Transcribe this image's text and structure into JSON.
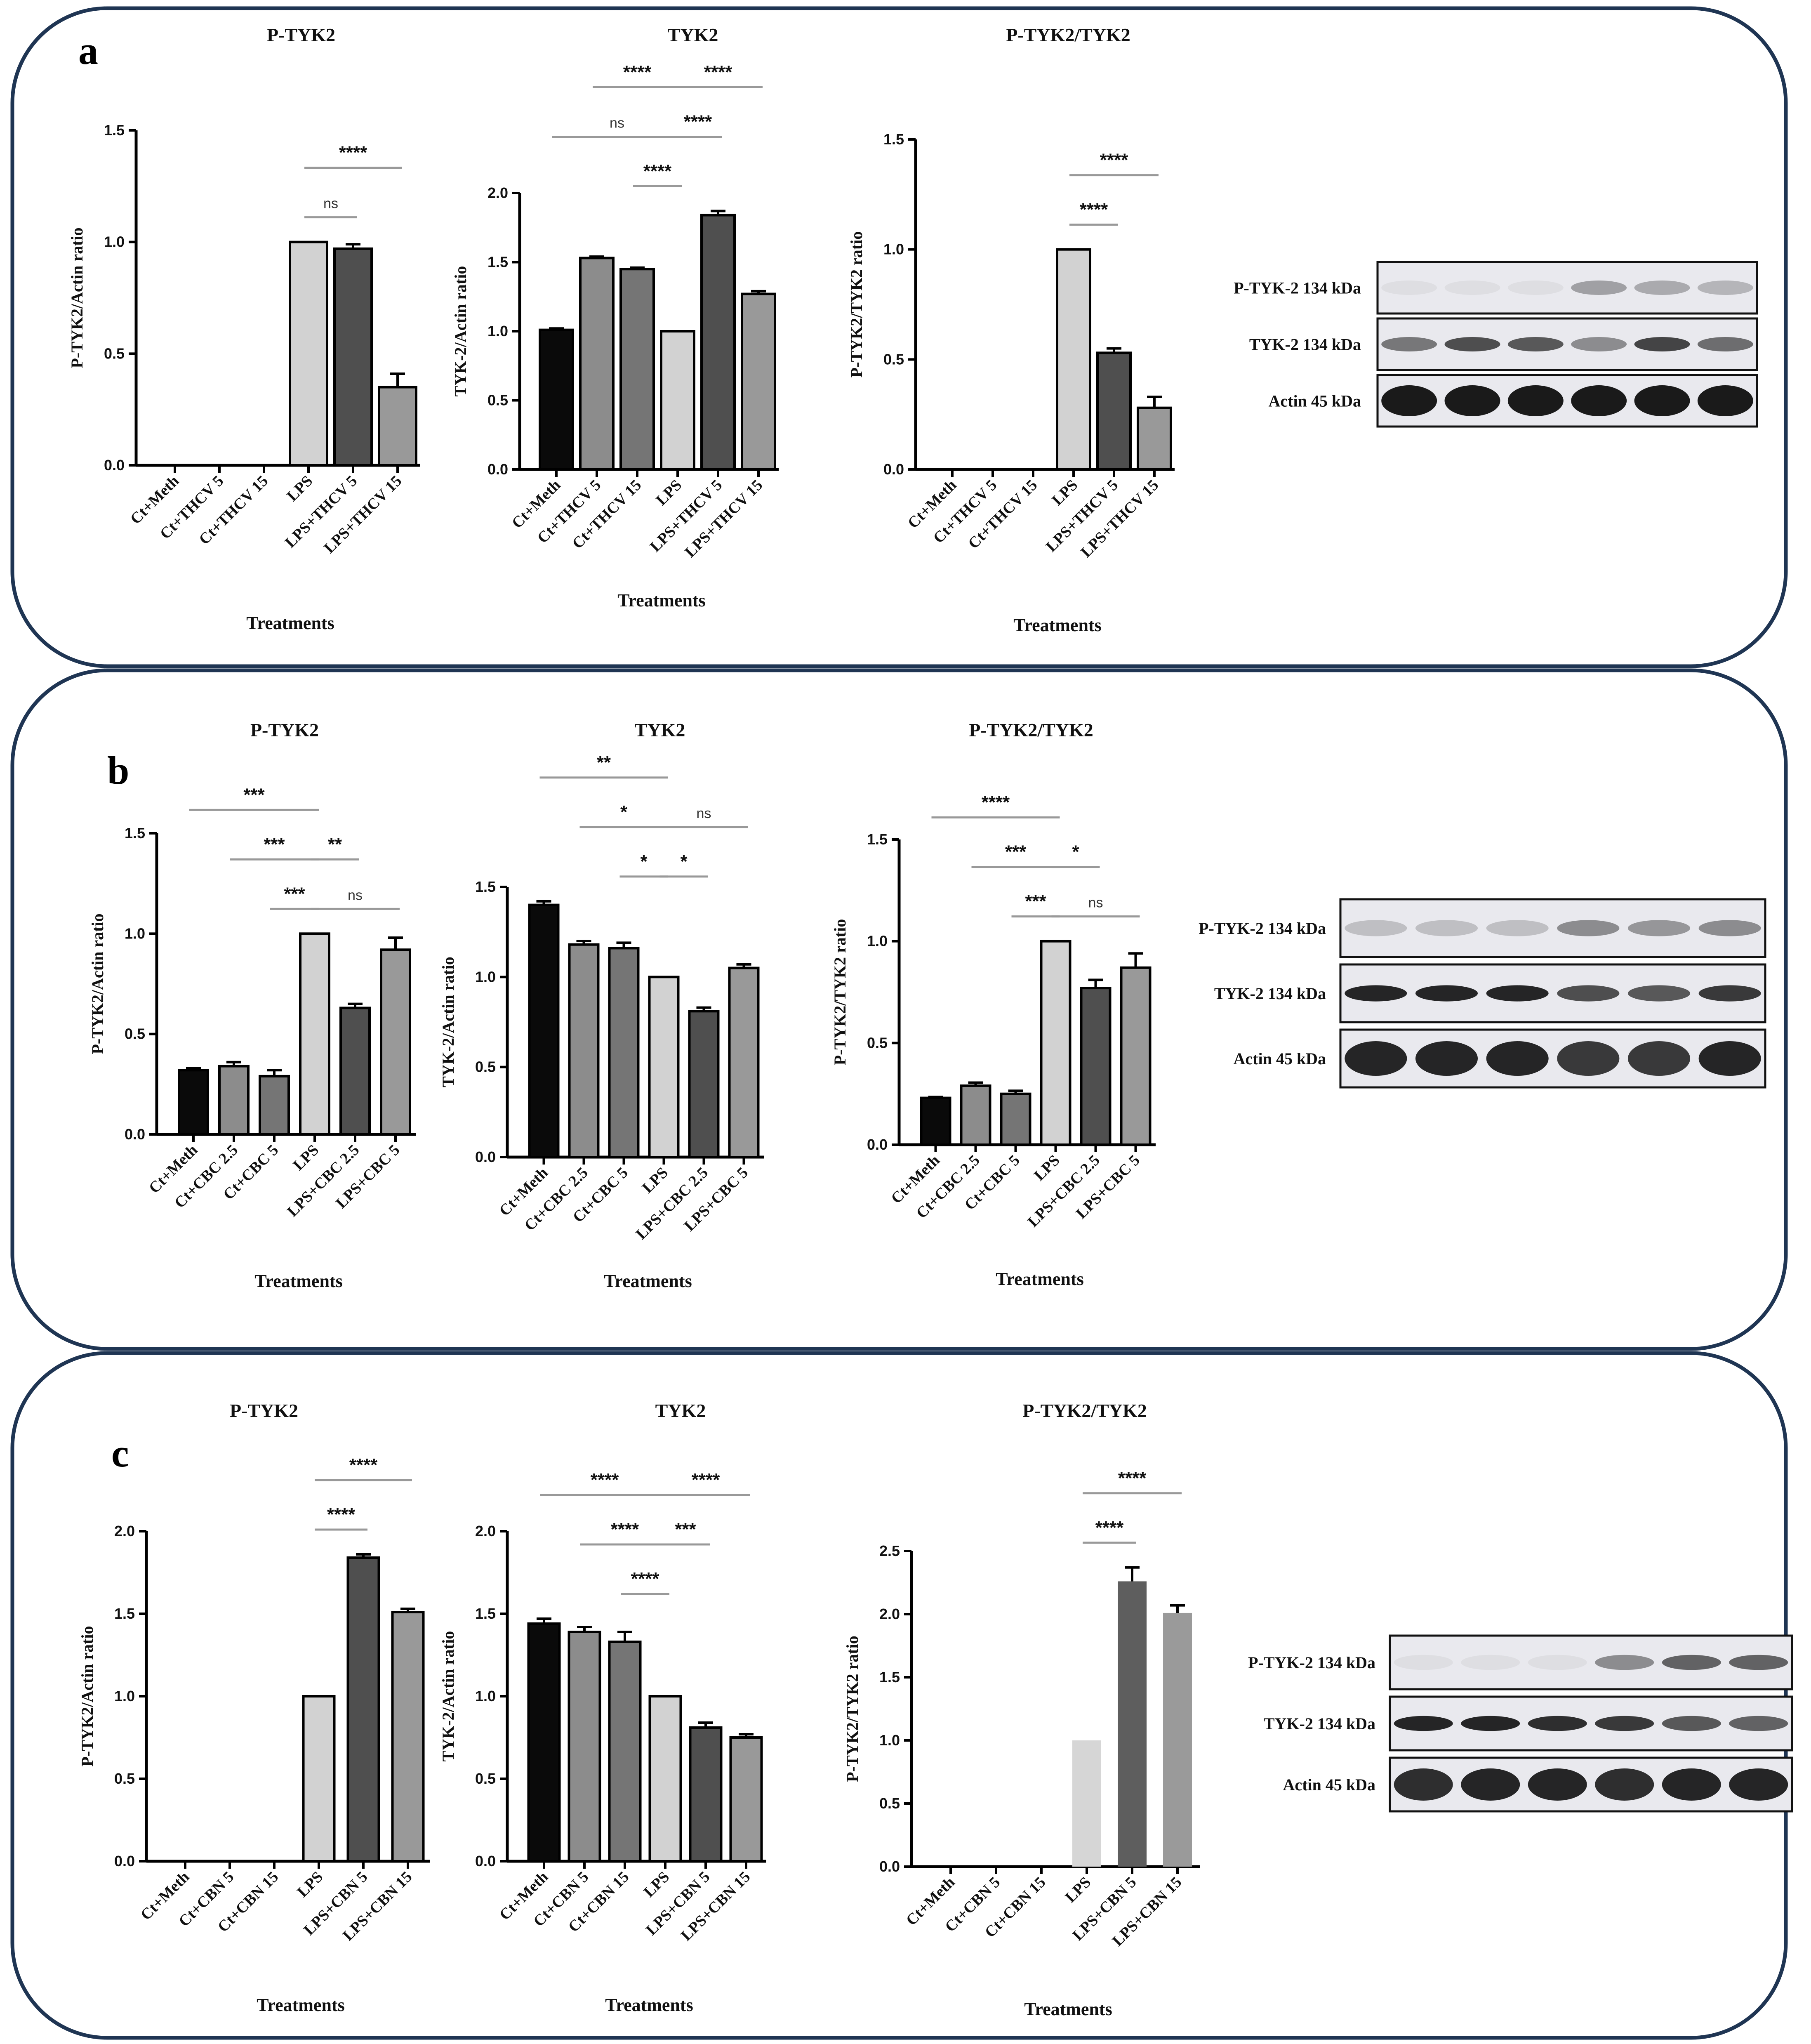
{
  "figure": {
    "axis_title_x": "Treatments",
    "colors": {
      "black": "#0a0a0a",
      "mid": "#8c8c8c",
      "dark_mid": "#757575",
      "light": "#d2d2d2",
      "dark": "#4f4f4f",
      "mid2": "#999999",
      "cbn_light": "#d6d6d6",
      "cbn_dark": "#5e5e5e",
      "cbn_mid": "#9a9a9a",
      "frame": "#1f3553"
    }
  },
  "panels": [
    {
      "letter": "a",
      "blot": {
        "bands": [
          "P-TYK-2 134 kDa",
          "TYK-2 134 kDa",
          "Actin 45 kDa"
        ]
      }
    },
    {
      "letter": "b",
      "blot": {
        "bands": [
          "P-TYK-2 134 kDa",
          "TYK-2 134 kDa",
          "Actin 45 kDa"
        ]
      }
    },
    {
      "letter": "c",
      "blot": {
        "bands": [
          "P-TYK-2 134 kDa",
          "TYK-2 134 kDa",
          "Actin 45 kDa"
        ]
      }
    }
  ],
  "chart_data": [
    {
      "panel": "a",
      "type": "bar",
      "title": "P-TYK2",
      "xlabel": "Treatments",
      "ylabel": "P-TYK2/Actin ratio",
      "categories": [
        "Ct+Meth",
        "Ct+THCV 5",
        "Ct+THCV 15",
        "LPS",
        "LPS+THCV 5",
        "LPS+THCV 15"
      ],
      "values": [
        0,
        0,
        0,
        1.0,
        0.97,
        0.35
      ],
      "errors": [
        0,
        0,
        0,
        0,
        0.02,
        0.06
      ],
      "ylim": [
        0,
        1.5
      ],
      "yticks": [
        "0.0",
        "0.5",
        "1.0",
        "1.5"
      ],
      "fills": [
        "black",
        "mid",
        "dark_mid",
        "light",
        "dark",
        "mid2"
      ],
      "brackets": [
        {
          "from": 3,
          "to": 4,
          "label": "ns",
          "level": 1
        },
        {
          "from": 3,
          "to": 5,
          "label": "****",
          "level": 2
        }
      ]
    },
    {
      "panel": "a",
      "type": "bar",
      "title": "TYK2",
      "xlabel": "Treatments",
      "ylabel": "TYK-2/Actin ratio",
      "categories": [
        "Ct+Meth",
        "Ct+THCV 5",
        "Ct+THCV 15",
        "LPS",
        "LPS+THCV 5",
        "LPS+THCV 15"
      ],
      "values": [
        1.01,
        1.53,
        1.45,
        1.0,
        1.84,
        1.27
      ],
      "errors": [
        0.01,
        0.01,
        0.01,
        0,
        0.03,
        0.02
      ],
      "ylim": [
        0,
        2.0
      ],
      "yticks": [
        "0.0",
        "0.5",
        "1.0",
        "1.5",
        "2.0"
      ],
      "fills": [
        "black",
        "mid",
        "dark_mid",
        "light",
        "dark",
        "mid2"
      ],
      "brackets": [
        {
          "from": 2,
          "to": 3,
          "label": "****",
          "level": 1
        },
        {
          "from": 0,
          "to": 3,
          "label": "ns",
          "level": 2
        },
        {
          "from": 3,
          "to": 4,
          "label": "****",
          "level": 2
        },
        {
          "from": 1,
          "to": 3,
          "label": "****",
          "level": 3
        },
        {
          "from": 3,
          "to": 5,
          "label": "****",
          "level": 3
        }
      ]
    },
    {
      "panel": "a",
      "type": "bar",
      "title": "P-TYK2/TYK2",
      "xlabel": "Treatments",
      "ylabel": "P-TYK2/TYK2 ratio",
      "categories": [
        "Ct+Meth",
        "Ct+THCV 5",
        "Ct+THCV 15",
        "LPS",
        "LPS+THCV 5",
        "LPS+THCV 15"
      ],
      "values": [
        0,
        0,
        0,
        1.0,
        0.53,
        0.28
      ],
      "errors": [
        0,
        0,
        0,
        0,
        0.02,
        0.05
      ],
      "ylim": [
        0,
        1.5
      ],
      "yticks": [
        "0.0",
        "0.5",
        "1.0",
        "1.5"
      ],
      "fills": [
        "black",
        "mid",
        "dark_mid",
        "light",
        "dark",
        "mid2"
      ],
      "brackets": [
        {
          "from": 3,
          "to": 4,
          "label": "****",
          "level": 1
        },
        {
          "from": 3,
          "to": 5,
          "label": "****",
          "level": 2
        }
      ]
    },
    {
      "panel": "b",
      "type": "bar",
      "title": "P-TYK2",
      "xlabel": "Treatments",
      "ylabel": "P-TYK2/Actin ratio",
      "categories": [
        "Ct+Meth",
        "Ct+CBC 2.5",
        "Ct+CBC 5",
        "LPS",
        "LPS+CBC 2.5",
        "LPS+CBC 5"
      ],
      "values": [
        0.32,
        0.34,
        0.29,
        1.0,
        0.63,
        0.92
      ],
      "errors": [
        0.01,
        0.02,
        0.03,
        0,
        0.02,
        0.06
      ],
      "ylim": [
        0,
        1.5
      ],
      "yticks": [
        "0.0",
        "0.5",
        "1.0",
        "1.5"
      ],
      "fills": [
        "black",
        "mid",
        "dark_mid",
        "light",
        "dark",
        "mid2"
      ],
      "brackets": [
        {
          "from": 2,
          "to": 3,
          "label": "***",
          "level": 1
        },
        {
          "from": 3,
          "to": 5,
          "label": "ns",
          "level": 1
        },
        {
          "from": 1,
          "to": 3,
          "label": "***",
          "level": 2
        },
        {
          "from": 3,
          "to": 4,
          "label": "**",
          "level": 2
        },
        {
          "from": 0,
          "to": 3,
          "label": "***",
          "level": 3
        }
      ]
    },
    {
      "panel": "b",
      "type": "bar",
      "title": "TYK2",
      "xlabel": "Treatments",
      "ylabel": "TYK-2/Actin ratio",
      "categories": [
        "Ct+Meth",
        "Ct+CBC 2.5",
        "Ct+CBC 5",
        "LPS",
        "LPS+CBC 2.5",
        "LPS+CBC 5"
      ],
      "values": [
        1.4,
        1.18,
        1.16,
        1.0,
        0.81,
        1.05
      ],
      "errors": [
        0.02,
        0.02,
        0.03,
        0,
        0.02,
        0.02
      ],
      "ylim": [
        0,
        1.5
      ],
      "yticks": [
        "0.0",
        "0.5",
        "1.0",
        "1.5"
      ],
      "fills": [
        "black",
        "mid",
        "dark_mid",
        "light",
        "dark",
        "mid2"
      ],
      "brackets": [
        {
          "from": 2,
          "to": 3,
          "label": "*",
          "level": 1
        },
        {
          "from": 3,
          "to": 4,
          "label": "*",
          "level": 1
        },
        {
          "from": 1,
          "to": 3,
          "label": "*",
          "level": 2
        },
        {
          "from": 3,
          "to": 5,
          "label": "ns",
          "level": 2
        },
        {
          "from": 0,
          "to": 3,
          "label": "**",
          "level": 3
        }
      ]
    },
    {
      "panel": "b",
      "type": "bar",
      "title": "P-TYK2/TYK2",
      "xlabel": "Treatments",
      "ylabel": "P-TYK2/TYK2 ratio",
      "categories": [
        "Ct+Meth",
        "Ct+CBC 2.5",
        "Ct+CBC 5",
        "LPS",
        "LPS+CBC 2.5",
        "LPS+CBC 5"
      ],
      "values": [
        0.23,
        0.29,
        0.25,
        1.0,
        0.77,
        0.87
      ],
      "errors": [
        0.005,
        0.015,
        0.015,
        0,
        0.04,
        0.07
      ],
      "ylim": [
        0,
        1.5
      ],
      "yticks": [
        "0.0",
        "0.5",
        "1.0",
        "1.5"
      ],
      "fills": [
        "black",
        "mid",
        "dark_mid",
        "light",
        "dark",
        "mid2"
      ],
      "brackets": [
        {
          "from": 2,
          "to": 3,
          "label": "***",
          "level": 1
        },
        {
          "from": 3,
          "to": 5,
          "label": "ns",
          "level": 1
        },
        {
          "from": 1,
          "to": 3,
          "label": "***",
          "level": 2
        },
        {
          "from": 3,
          "to": 4,
          "label": "*",
          "level": 2
        },
        {
          "from": 0,
          "to": 3,
          "label": "****",
          "level": 3
        }
      ]
    },
    {
      "panel": "c",
      "type": "bar",
      "title": "P-TYK2",
      "xlabel": "Treatments",
      "ylabel": "P-TYK2/Actin ratio",
      "categories": [
        "Ct+Meth",
        "Ct+CBN 5",
        "Ct+CBN 15",
        "LPS",
        "LPS+CBN 5",
        "LPS+CBN 15"
      ],
      "values": [
        0,
        0,
        0,
        1.0,
        1.84,
        1.51
      ],
      "errors": [
        0,
        0,
        0,
        0,
        0.02,
        0.02
      ],
      "ylim": [
        0,
        2.0
      ],
      "yticks": [
        "0.0",
        "0.5",
        "1.0",
        "1.5",
        "2.0"
      ],
      "fills": [
        "black",
        "mid",
        "dark_mid",
        "light",
        "dark",
        "mid2"
      ],
      "brackets": [
        {
          "from": 3,
          "to": 4,
          "label": "****",
          "level": 1
        },
        {
          "from": 3,
          "to": 5,
          "label": "****",
          "level": 2
        }
      ]
    },
    {
      "panel": "c",
      "type": "bar",
      "title": "TYK2",
      "xlabel": "Treatments",
      "ylabel": "TYK-2/Actin ratio",
      "categories": [
        "Ct+Meth",
        "Ct+CBN 5",
        "Ct+CBN 15",
        "LPS",
        "LPS+CBN 5",
        "LPS+CBN 15"
      ],
      "values": [
        1.44,
        1.39,
        1.33,
        1.0,
        0.81,
        0.75
      ],
      "errors": [
        0.03,
        0.03,
        0.06,
        0,
        0.03,
        0.02
      ],
      "ylim": [
        0,
        2.0
      ],
      "yticks": [
        "0.0",
        "0.5",
        "1.0",
        "1.5",
        "2.0"
      ],
      "fills": [
        "black",
        "mid",
        "dark_mid",
        "light",
        "dark",
        "mid2"
      ],
      "brackets": [
        {
          "from": 2,
          "to": 3,
          "label": "****",
          "level": 1
        },
        {
          "from": 1,
          "to": 3,
          "label": "****",
          "level": 2
        },
        {
          "from": 3,
          "to": 4,
          "label": "***",
          "level": 2
        },
        {
          "from": 0,
          "to": 3,
          "label": "****",
          "level": 3
        },
        {
          "from": 3,
          "to": 5,
          "label": "****",
          "level": 3
        }
      ]
    },
    {
      "panel": "c",
      "type": "bar",
      "title": "P-TYK2/TYK2",
      "xlabel": "Treatments",
      "ylabel": "P-TYK2/TYK2 ratio",
      "categories": [
        "Ct+Meth",
        "Ct+CBN 5",
        "Ct+CBN 15",
        "LPS",
        "LPS+CBN 5",
        "LPS+CBN 15"
      ],
      "values": [
        0,
        0,
        0,
        1.0,
        2.26,
        2.01
      ],
      "errors": [
        0,
        0,
        0,
        0,
        0.11,
        0.06
      ],
      "ylim": [
        0,
        2.5
      ],
      "yticks": [
        "0.0",
        "0.5",
        "1.0",
        "1.5",
        "2.0",
        "2.5"
      ],
      "fills": [
        "black",
        "mid",
        "dark_mid",
        "cbn_light",
        "cbn_dark",
        "cbn_mid"
      ],
      "noStroke": true,
      "brackets": [
        {
          "from": 3,
          "to": 4,
          "label": "****",
          "level": 1
        },
        {
          "from": 3,
          "to": 5,
          "label": "****",
          "level": 2
        }
      ]
    }
  ]
}
